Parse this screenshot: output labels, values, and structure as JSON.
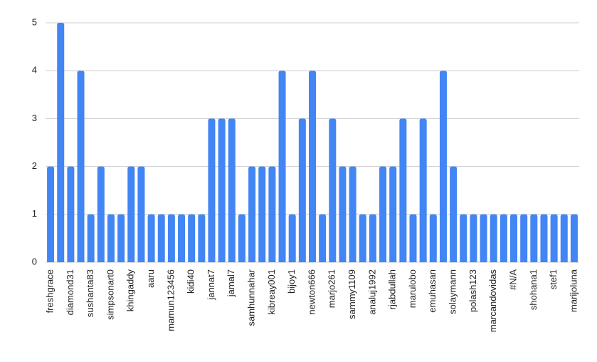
{
  "chart_data": {
    "type": "bar",
    "categories": [
      "freshgrace",
      null,
      "diamond31",
      null,
      "sushanta83",
      null,
      "simpsonart0",
      null,
      "khingaddy",
      null,
      "aaru",
      null,
      "mamun123456",
      null,
      "kidi40",
      null,
      "jannat7",
      null,
      "jamal7",
      null,
      "samhunnahar",
      null,
      "kibreay001",
      null,
      "bijoy1",
      null,
      "newton666",
      null,
      "marjo261",
      null,
      "sammy1109",
      null,
      "analuj1992",
      null,
      "rjabdullah",
      null,
      "marulobo",
      null,
      "emuhasan",
      null,
      "solaymann",
      null,
      "polash123",
      null,
      "marcandovidas",
      null,
      "#N/A",
      null,
      "shohana1",
      null,
      "stef1",
      null,
      "marijoluna"
    ],
    "values": [
      2,
      5,
      2,
      4,
      1,
      2,
      1,
      1,
      2,
      2,
      1,
      1,
      1,
      1,
      1,
      1,
      3,
      3,
      3,
      1,
      2,
      2,
      2,
      4,
      1,
      3,
      4,
      1,
      3,
      2,
      2,
      1,
      1,
      2,
      2,
      3,
      1,
      3,
      1,
      4,
      2,
      1,
      1,
      1,
      1,
      1,
      1,
      1,
      1,
      1,
      1,
      1,
      1
    ],
    "color": "#4285f4",
    "ylim": [
      0,
      5
    ],
    "yticks": [
      0,
      1,
      2,
      3,
      4,
      5
    ],
    "grid": true
  }
}
